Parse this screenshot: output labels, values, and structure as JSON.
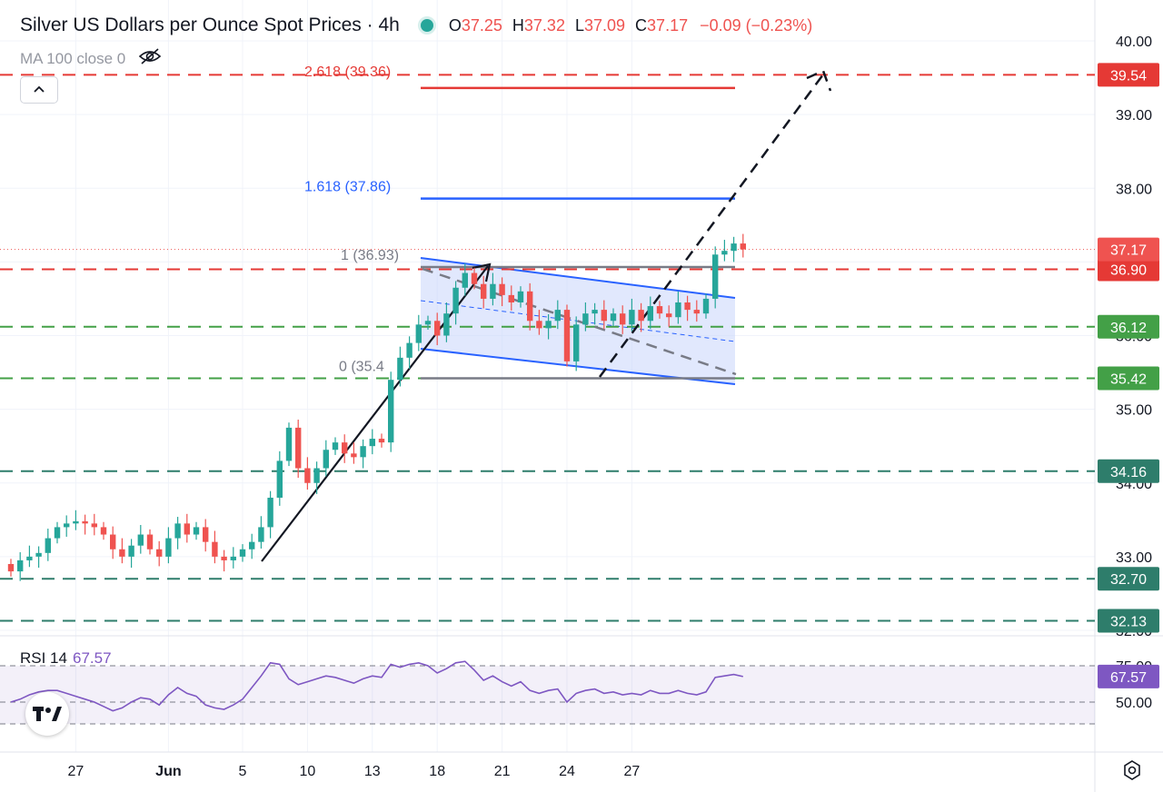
{
  "header": {
    "title": "Silver US Dollars per Ounce Spot Prices · 4h",
    "o_label": "O",
    "o_value": "37.25",
    "h_label": "H",
    "h_value": "37.32",
    "l_label": "L",
    "l_value": "37.09",
    "c_label": "C",
    "c_value": "37.17",
    "change": "−0.09 (−0.23%)"
  },
  "indicator": {
    "label": "MA 100 close 0",
    "icon": "eye-crossed-icon"
  },
  "rsi": {
    "label": "RSI 14",
    "value": "67.57"
  },
  "icons": {
    "collapse": "chevron-up-icon",
    "logo": "tradingview-logo-icon",
    "settings": "gear-icon"
  },
  "colors": {
    "up": "#26a69a",
    "down": "#ef5350",
    "fib_blue": "#2962ff",
    "red_level": "#e53935",
    "green_level": "#43a047",
    "teal_level": "#2e7d6b",
    "rsi": "#7e57c2",
    "channel_fill": "#c9d6fb"
  },
  "chart_data": {
    "type": "candlestick",
    "symbol": "Silver US Dollars per Ounce Spot Prices",
    "timeframe": "4h",
    "price_axis": {
      "min": 31.9,
      "max": 40.1,
      "ticks": [
        "40.00",
        "39.00",
        "38.00",
        "37.00",
        "36.00",
        "35.00",
        "34.00",
        "33.00",
        "32.00"
      ]
    },
    "x_ticks": [
      {
        "label": "27",
        "idx": 7
      },
      {
        "label": "Jun",
        "idx": 17
      },
      {
        "label": "5",
        "idx": 25
      },
      {
        "label": "10",
        "idx": 32
      },
      {
        "label": "13",
        "idx": 39
      },
      {
        "label": "18",
        "idx": 46
      },
      {
        "label": "21",
        "idx": 53
      },
      {
        "label": "24",
        "idx": 60
      },
      {
        "label": "27",
        "idx": 67
      }
    ],
    "closes": [
      32.8,
      32.95,
      33.0,
      33.05,
      33.25,
      33.4,
      33.45,
      33.48,
      33.45,
      33.4,
      33.3,
      33.1,
      33.0,
      33.15,
      33.3,
      33.1,
      33.0,
      33.25,
      33.45,
      33.3,
      33.4,
      33.2,
      33.0,
      32.95,
      33.0,
      33.1,
      33.2,
      33.4,
      33.8,
      34.3,
      34.75,
      34.2,
      34.0,
      34.2,
      34.45,
      34.55,
      34.4,
      34.35,
      34.5,
      34.6,
      34.55,
      35.4,
      35.7,
      35.9,
      36.15,
      36.2,
      36.0,
      36.3,
      36.65,
      36.85,
      36.7,
      36.5,
      36.7,
      36.55,
      36.45,
      36.6,
      36.2,
      36.1,
      36.2,
      36.35,
      35.65,
      36.15,
      36.3,
      36.35,
      36.2,
      36.3,
      36.15,
      36.35,
      36.2,
      36.4,
      36.3,
      36.25,
      36.45,
      36.35,
      36.3,
      36.5,
      37.1,
      37.15,
      37.25,
      37.17
    ],
    "levels": [
      {
        "price": 39.54,
        "label": "39.54",
        "color": "#e53935"
      },
      {
        "price": 36.9,
        "label": "36.90",
        "color": "#e53935"
      },
      {
        "price": 36.12,
        "label": "36.12",
        "color": "#43a047"
      },
      {
        "price": 35.42,
        "label": "35.42",
        "color": "#43a047"
      },
      {
        "price": 34.16,
        "label": "34.16",
        "color": "#2e7d6b"
      },
      {
        "price": 32.7,
        "label": "32.70",
        "color": "#2e7d6b"
      },
      {
        "price": 32.13,
        "label": "32.13",
        "color": "#2e7d6b"
      }
    ],
    "last_price": {
      "price": 37.17,
      "label": "37.17"
    },
    "fib_levels": [
      {
        "label": "2.618 (39.36)",
        "price": 39.36,
        "color": "#e53935"
      },
      {
        "label": "1.618 (37.86)",
        "price": 37.86,
        "color": "#2962ff"
      },
      {
        "label": "1 (36.93)",
        "price": 36.93,
        "color": "#787b86"
      },
      {
        "label": "0 (35.4",
        "price": 35.42,
        "color": "#787b86"
      }
    ],
    "rsi": {
      "period": 14,
      "last": 67.57,
      "ticks": [
        "75.00",
        "50.00"
      ],
      "min": 28,
      "max": 82,
      "values": [
        50,
        52,
        55,
        57,
        58,
        58,
        56,
        54,
        52,
        50,
        47,
        44,
        46,
        50,
        53,
        52,
        48,
        55,
        60,
        56,
        54,
        48,
        46,
        45,
        48,
        52,
        60,
        68,
        77,
        76,
        66,
        62,
        64,
        66,
        68,
        67,
        65,
        63,
        66,
        68,
        67,
        76,
        74,
        76,
        77,
        75,
        70,
        73,
        77,
        78,
        72,
        65,
        68,
        64,
        61,
        64,
        58,
        56,
        58,
        59,
        50,
        56,
        58,
        59,
        56,
        57,
        55,
        56,
        55,
        58,
        56,
        56,
        58,
        56,
        55,
        57,
        67,
        68,
        69,
        67.57
      ]
    }
  }
}
